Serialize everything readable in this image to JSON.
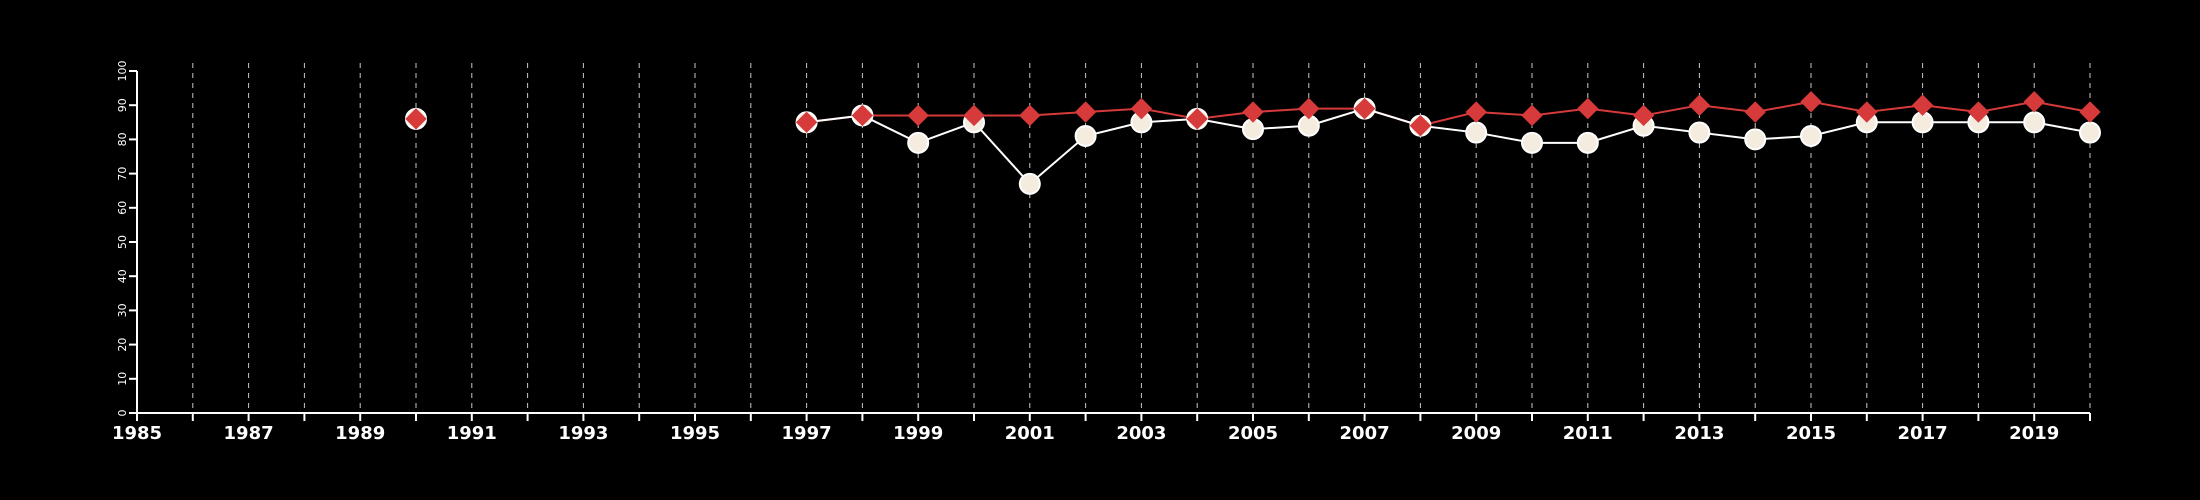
{
  "chart_data": {
    "type": "line",
    "title": "",
    "xlabel": "",
    "ylabel": "",
    "xlim": [
      1985,
      2020
    ],
    "ylim": [
      0,
      100
    ],
    "x_ticks": [
      1985,
      1987,
      1989,
      1991,
      1993,
      1995,
      1997,
      1999,
      2001,
      2003,
      2005,
      2007,
      2009,
      2011,
      2013,
      2015,
      2017,
      2019
    ],
    "y_ticks": [
      0,
      10,
      20,
      30,
      40,
      50,
      60,
      70,
      80,
      90,
      100
    ],
    "vertical_grid": "dashed at every year 1986-2020",
    "legend": "none",
    "series": [
      {
        "marker": "circle",
        "color": "#f5ece0",
        "line_color": "#ffffff",
        "points": [
          {
            "x": 1990,
            "y": 86
          },
          {
            "x": 1997,
            "y": 85
          },
          {
            "x": 1998,
            "y": 87
          },
          {
            "x": 1999,
            "y": 79
          },
          {
            "x": 2000,
            "y": 85
          },
          {
            "x": 2001,
            "y": 67
          },
          {
            "x": 2002,
            "y": 81
          },
          {
            "x": 2003,
            "y": 85
          },
          {
            "x": 2004,
            "y": 86
          },
          {
            "x": 2005,
            "y": 83
          },
          {
            "x": 2006,
            "y": 84
          },
          {
            "x": 2007,
            "y": 89
          },
          {
            "x": 2008,
            "y": 84
          },
          {
            "x": 2009,
            "y": 82
          },
          {
            "x": 2010,
            "y": 79
          },
          {
            "x": 2011,
            "y": 79
          },
          {
            "x": 2012,
            "y": 84
          },
          {
            "x": 2013,
            "y": 82
          },
          {
            "x": 2014,
            "y": 80
          },
          {
            "x": 2015,
            "y": 81
          },
          {
            "x": 2016,
            "y": 85
          },
          {
            "x": 2017,
            "y": 85
          },
          {
            "x": 2018,
            "y": 85
          },
          {
            "x": 2019,
            "y": 85
          },
          {
            "x": 2020,
            "y": 82
          }
        ]
      },
      {
        "marker": "diamond",
        "color": "#d63a3a",
        "line_color": "#d63a3a",
        "points": [
          {
            "x": 1990,
            "y": 86
          },
          {
            "x": 1997,
            "y": 85
          },
          {
            "x": 1998,
            "y": 87
          },
          {
            "x": 1999,
            "y": 87
          },
          {
            "x": 2000,
            "y": 87
          },
          {
            "x": 2001,
            "y": 87
          },
          {
            "x": 2002,
            "y": 88
          },
          {
            "x": 2003,
            "y": 89
          },
          {
            "x": 2004,
            "y": 86
          },
          {
            "x": 2005,
            "y": 88
          },
          {
            "x": 2006,
            "y": 89
          },
          {
            "x": 2007,
            "y": 89
          },
          {
            "x": 2008,
            "y": 84
          },
          {
            "x": 2009,
            "y": 88
          },
          {
            "x": 2010,
            "y": 87
          },
          {
            "x": 2011,
            "y": 89
          },
          {
            "x": 2012,
            "y": 87
          },
          {
            "x": 2013,
            "y": 90
          },
          {
            "x": 2014,
            "y": 88
          },
          {
            "x": 2015,
            "y": 91
          },
          {
            "x": 2016,
            "y": 88
          },
          {
            "x": 2017,
            "y": 90
          },
          {
            "x": 2018,
            "y": 88
          },
          {
            "x": 2019,
            "y": 91
          },
          {
            "x": 2020,
            "y": 88
          }
        ]
      }
    ]
  }
}
